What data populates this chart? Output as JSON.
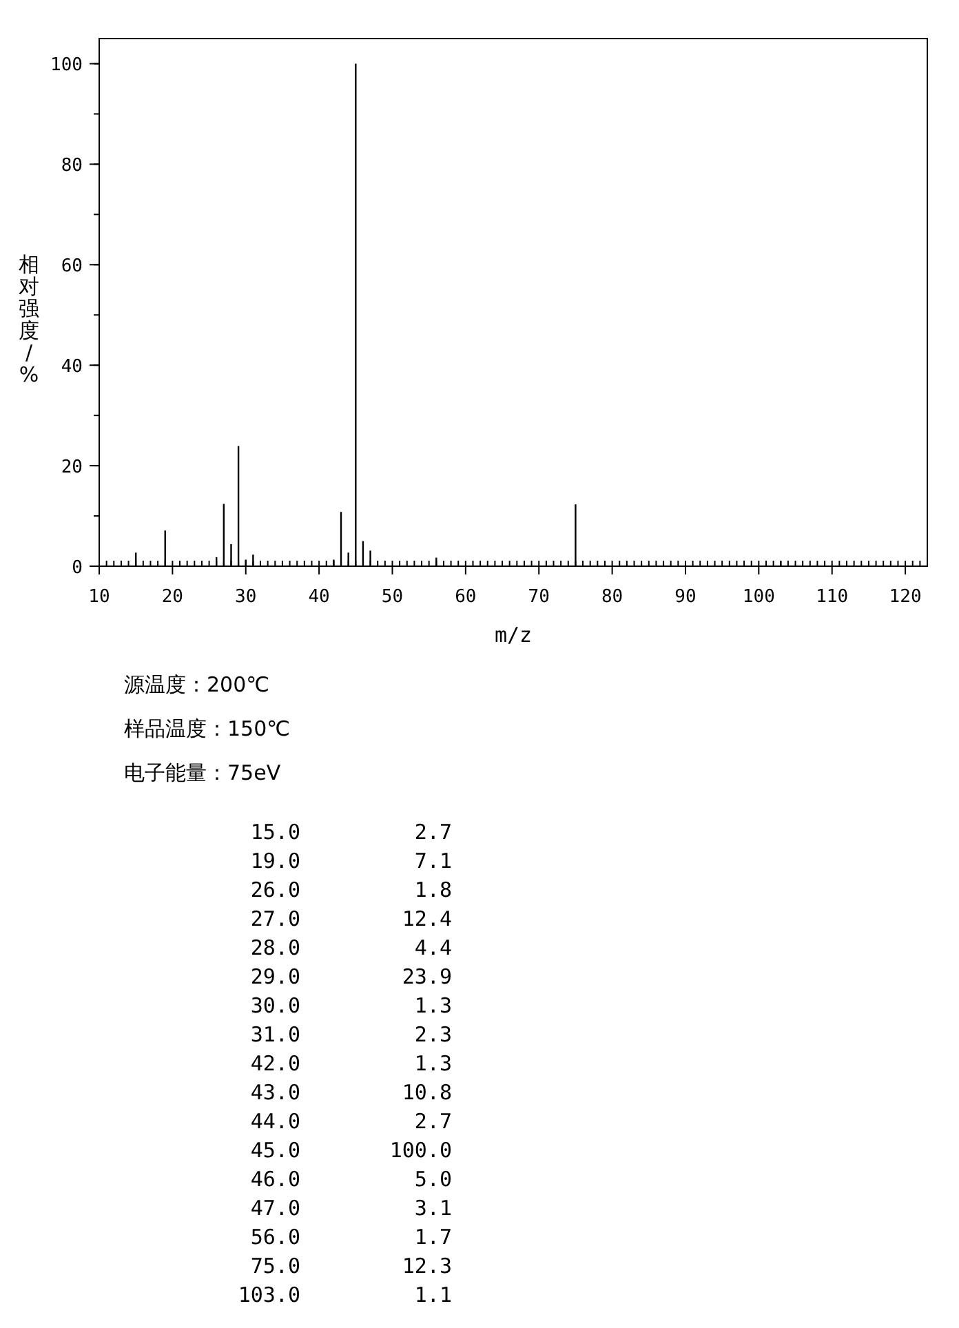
{
  "chart_data": {
    "type": "bar",
    "xlabel": "m/z",
    "ylabel": "相对强度/%",
    "x": [
      15,
      19,
      26,
      27,
      28,
      29,
      30,
      31,
      42,
      43,
      44,
      45,
      46,
      47,
      56,
      75,
      103
    ],
    "values": [
      2.7,
      7.1,
      1.8,
      12.4,
      4.4,
      23.9,
      1.3,
      2.3,
      1.3,
      10.8,
      2.7,
      100.0,
      5.0,
      3.1,
      1.7,
      12.3,
      1.1
    ],
    "color": "#000000",
    "xlim": [
      10,
      123
    ],
    "xticks": [
      10,
      20,
      30,
      40,
      50,
      60,
      70,
      80,
      90,
      100,
      110,
      120
    ],
    "ylim": [
      0,
      105
    ],
    "yticks": [
      0,
      20,
      40,
      60,
      80,
      100
    ],
    "annotations": [
      "源温度：200℃",
      "样品温度：150℃",
      "电子能量：75eV",
      "15.0",
      "2.7",
      "19.0",
      "7.1",
      "26.0",
      "1.8",
      "27.0",
      "12.4",
      "28.0",
      "4.4",
      "29.0",
      "23.9",
      "30.0",
      "1.3",
      "31.0",
      "2.3",
      "42.0",
      "1.3",
      "43.0",
      "10.8",
      "44.0",
      "2.7",
      "45.0",
      "100.0",
      "46.0",
      "5.0",
      "47.0",
      "3.1",
      "56.0",
      "1.7",
      "75.0",
      "12.3",
      "103.0",
      "1.1"
    ]
  }
}
